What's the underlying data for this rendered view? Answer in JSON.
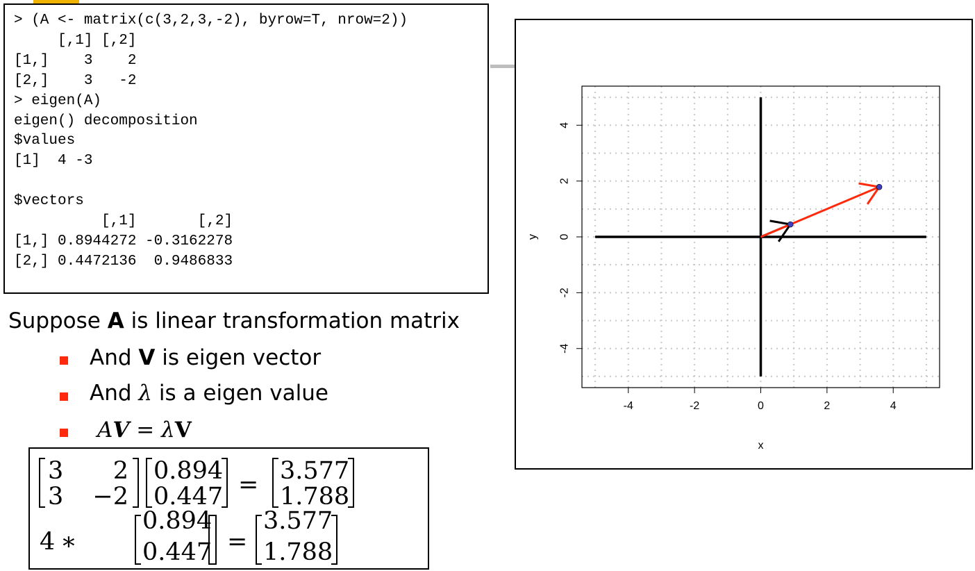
{
  "console": {
    "lines": [
      "> (A <- matrix(c(3,2,3,-2), byrow=T, nrow=2))",
      "     [,1] [,2]",
      "[1,]    3    2",
      "[2,]    3   -2",
      "> eigen(A)",
      "eigen() decomposition",
      "$values",
      "[1]  4 -3",
      "",
      "$vectors",
      "          [,1]       [,2]",
      "[1,] 0.8944272 -0.3162278",
      "[2,] 0.4472136  0.9486833"
    ]
  },
  "caption": {
    "prefix": "Suppose ",
    "bold": "A",
    "suffix": " is linear transformation matrix"
  },
  "bullets": [
    {
      "prefix": "And ",
      "symbol": "V",
      "suffix": " is eigen vector"
    },
    {
      "prefix": "And ",
      "symbol": "λ",
      "suffix": " is a eigen value"
    },
    {
      "lhs_a": "A",
      "lhs_v": "V",
      "eq": " = ",
      "lam": "λ",
      "rhs_v": "V"
    }
  ],
  "equations": {
    "matrix_A": [
      [
        "3",
        "2"
      ],
      [
        "3",
        "−2"
      ]
    ],
    "vector_v": [
      "0.894",
      "0.447"
    ],
    "result": [
      "3.577",
      "1.788"
    ],
    "eigenvalue": "4",
    "times": "∗",
    "equals": "="
  },
  "colors": {
    "bullet": "#ff2a0c",
    "accent": "#f0b400",
    "arrow_av": "#ff2a0c",
    "arrow_v": "#000000",
    "point": "#4040c0"
  },
  "chart_data": {
    "type": "scatter",
    "xlabel": "x",
    "ylabel": "y",
    "xlim": [
      -5,
      5
    ],
    "ylim": [
      -5,
      5
    ],
    "xticks": [
      -4,
      -2,
      0,
      2,
      4
    ],
    "yticks": [
      -4,
      -2,
      0,
      2,
      4
    ],
    "xtick_labels": [
      "-4",
      "-2",
      "0",
      "2",
      "4"
    ],
    "ytick_labels": [
      "-4",
      "-2",
      "0",
      "2",
      "4"
    ],
    "grid": true,
    "grid_step": 1,
    "axes_lines": {
      "x_from": -5,
      "x_to": 5,
      "y_from": -5,
      "y_to": 5
    },
    "arrows": [
      {
        "from": [
          0,
          0
        ],
        "to": [
          0.894,
          0.447
        ],
        "color": "#000000"
      },
      {
        "from": [
          0,
          0
        ],
        "to": [
          3.577,
          1.788
        ],
        "color": "#ff2a0c"
      }
    ],
    "points": [
      [
        0.894,
        0.447
      ],
      [
        3.577,
        1.788
      ]
    ]
  }
}
